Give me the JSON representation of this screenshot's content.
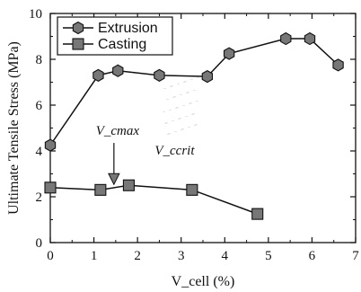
{
  "chart_data": {
    "type": "line",
    "xlabel": "V_cell (%)",
    "ylabel": "Ultimate Tensile Stress (MPa)",
    "xlim": [
      0,
      7
    ],
    "ylim": [
      0,
      10
    ],
    "x_ticks": [
      0,
      1,
      2,
      3,
      4,
      5,
      6,
      7
    ],
    "y_ticks": [
      0,
      2,
      4,
      6,
      8,
      10
    ],
    "legend_placement": "top-left",
    "grid": false,
    "series": [
      {
        "name": "Extrusion",
        "marker": "hexagon",
        "color": "#777777",
        "x": [
          0.0,
          1.1,
          1.55,
          2.5,
          3.6,
          4.1,
          5.4,
          5.95,
          6.6
        ],
        "y": [
          4.25,
          7.3,
          7.5,
          7.3,
          7.25,
          8.25,
          8.9,
          8.9,
          7.75
        ]
      },
      {
        "name": "Casting",
        "marker": "square",
        "color": "#777777",
        "x": [
          0.0,
          1.15,
          1.8,
          3.25,
          4.75
        ],
        "y": [
          2.4,
          2.3,
          2.5,
          2.3,
          1.25
        ]
      }
    ],
    "annotations": [
      {
        "text": "V_cmax",
        "arrow_to": {
          "x": 1.5,
          "y": 2.5
        }
      },
      {
        "text": "V_ccrit"
      }
    ]
  }
}
